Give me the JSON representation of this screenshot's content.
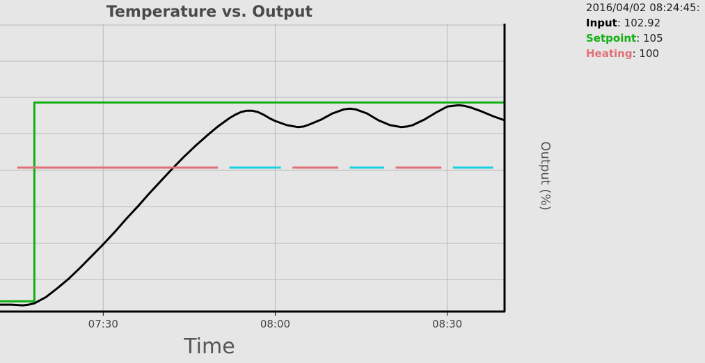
{
  "readout": {
    "timestamp": "2016/04/02 08:24:45:",
    "input_label": "Input",
    "input_value": ": 102.92",
    "setpoint_label": "Setpoint",
    "setpoint_value": ": 105",
    "heating_label": "Heating",
    "heating_value": ": 100"
  },
  "colors": {
    "input": "#000000",
    "setpoint": "#11b011",
    "heating": "#e07078",
    "heating_alt": "#18d0e0",
    "grid": "#b8b8b8",
    "background": "#e6e6e6"
  },
  "chart_data": {
    "type": "line",
    "title": "Temperature vs. Output",
    "xlabel": "Time",
    "ylabel": "",
    "y2label": "Output (%)",
    "x_ticks": [
      "07:30",
      "08:00",
      "08:30"
    ],
    "xlim": [
      "07:12",
      "08:40"
    ],
    "ylim": [
      70,
      112
    ],
    "y2lim": [
      0,
      200
    ],
    "grid": true,
    "series": [
      {
        "name": "Input",
        "x": [
          "07:12",
          "07:14",
          "07:16",
          "07:17",
          "07:18",
          "07:20",
          "07:22",
          "07:24",
          "07:26",
          "07:28",
          "07:30",
          "07:32",
          "07:34",
          "07:36",
          "07:38",
          "07:40",
          "07:42",
          "07:44",
          "07:46",
          "07:48",
          "07:50",
          "07:52",
          "07:53",
          "07:54",
          "07:55",
          "07:56",
          "07:57",
          "07:58",
          "07:59",
          "08:00",
          "08:02",
          "08:04",
          "08:05",
          "08:06",
          "08:08",
          "08:10",
          "08:12",
          "08:13",
          "08:14",
          "08:16",
          "08:18",
          "08:20",
          "08:22",
          "08:23",
          "08:24",
          "08:25",
          "08:26",
          "08:28",
          "08:30",
          "08:32",
          "08:33",
          "08:34",
          "08:36",
          "08:38",
          "08:40"
        ],
        "y": [
          71.0,
          71.0,
          70.9,
          71.0,
          71.2,
          72.1,
          73.4,
          74.8,
          76.4,
          78.1,
          79.8,
          81.6,
          83.5,
          85.3,
          87.2,
          89.0,
          90.8,
          92.5,
          94.1,
          95.6,
          97.0,
          98.2,
          98.7,
          99.1,
          99.3,
          99.3,
          99.1,
          98.7,
          98.2,
          97.8,
          97.2,
          96.9,
          97.0,
          97.3,
          98.0,
          98.9,
          99.5,
          99.6,
          99.5,
          98.9,
          97.9,
          97.2,
          96.9,
          97.0,
          97.2,
          97.6,
          98.0,
          99.0,
          99.9,
          100.1,
          100.0,
          99.8,
          99.2,
          98.5,
          97.9
        ],
        "color": "#000000"
      },
      {
        "name": "Setpoint",
        "x": [
          "07:12",
          "07:18",
          "07:18",
          "08:40"
        ],
        "y": [
          71.5,
          71.5,
          100.5,
          100.5
        ],
        "color": "#11b011"
      },
      {
        "name": "Heating",
        "axis": "y2",
        "x": [
          "07:15",
          "07:50",
          "07:52",
          "08:01",
          "08:03",
          "08:11",
          "08:13",
          "08:19",
          "08:21",
          "08:29",
          "08:31",
          "08:38"
        ],
        "y": [
          100,
          100,
          100,
          100,
          100,
          100,
          100,
          100,
          100,
          100,
          100,
          100
        ],
        "colors": [
          "#e07078",
          "#18d0e0",
          "#e07078",
          "#18d0e0",
          "#e07078",
          "#18d0e0"
        ]
      }
    ]
  }
}
